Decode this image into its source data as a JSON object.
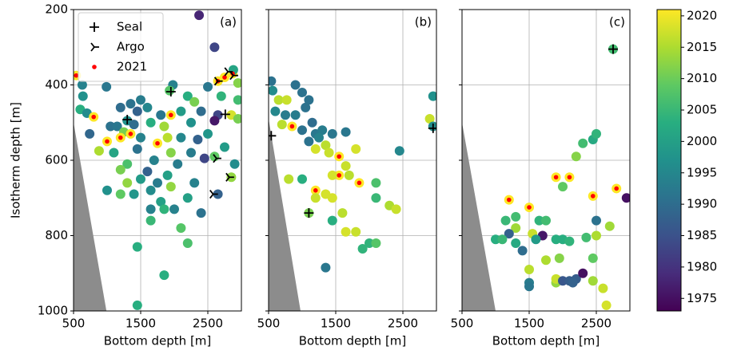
{
  "chart_data": [
    {
      "type": "scatter",
      "label": "(a)",
      "xlabel": "Bottom depth [m]",
      "ylabel": "Isotherm depth [m]",
      "xlim": [
        500,
        3000
      ],
      "ylim": [
        200,
        1000
      ],
      "y_inverted": true,
      "xticks": [
        500,
        1500,
        2500
      ],
      "yticks": [
        200,
        400,
        600,
        800,
        1000
      ],
      "ytick_labels": true,
      "grid": true,
      "colormap": "viridis",
      "highlight_year": 2021,
      "highlight_color": "red",
      "shade_color": "#8c8c8c",
      "shade": {
        "x": [
          500,
          500,
          990
        ],
        "y": [
          500,
          1000,
          1000
        ]
      },
      "legend": [
        {
          "label": "Seal",
          "marker": "plus"
        },
        {
          "label": "Argo",
          "marker": "tri"
        },
        {
          "label": "2021",
          "marker": "dot"
        }
      ],
      "legend_loc": "upper left",
      "points": {
        "x": [
          2370,
          2600,
          540,
          2870,
          2750,
          2950,
          2650,
          2880,
          630,
          990,
          1980,
          1930,
          2500,
          2200,
          640,
          1500,
          1350,
          2300,
          2700,
          2950,
          600,
          700,
          800,
          1200,
          1450,
          1600,
          1800,
          1950,
          2100,
          2400,
          2650,
          2850,
          2950,
          1300,
          1050,
          1150,
          1400,
          1650,
          1850,
          2250,
          2600,
          740,
          1250,
          1350,
          1200,
          1000,
          1500,
          1750,
          1900,
          2100,
          2350,
          2500,
          2750,
          880,
          1100,
          1450,
          1950,
          2250,
          2450,
          2600,
          1300,
          1700,
          2050,
          2900,
          1200,
          1600,
          1900,
          2850,
          1300,
          1500,
          1750,
          1950,
          2300,
          1000,
          1400,
          1650,
          2650,
          1200,
          1800,
          2200,
          2000,
          1650,
          1850,
          2400,
          1650,
          2100,
          2200,
          1450,
          1850,
          1450
        ],
        "y": [
          215,
          300,
          375,
          370,
          380,
          395,
          390,
          360,
          400,
          405,
          400,
          415,
          405,
          430,
          430,
          440,
          450,
          445,
          430,
          440,
          465,
          475,
          485,
          460,
          470,
          460,
          480,
          480,
          470,
          470,
          480,
          480,
          490,
          495,
          510,
          510,
          505,
          500,
          510,
          500,
          495,
          530,
          525,
          530,
          540,
          550,
          540,
          555,
          540,
          540,
          545,
          530,
          565,
          575,
          580,
          570,
          580,
          580,
          595,
          590,
          610,
          600,
          610,
          610,
          625,
          630,
          640,
          645,
          660,
          650,
          660,
          670,
          660,
          680,
          690,
          680,
          690,
          690,
          710,
          700,
          730,
          730,
          730,
          740,
          760,
          780,
          820,
          830,
          905,
          985
        ],
        "year": [
          1978,
          1983,
          2021,
          2021,
          2021,
          2012,
          2021,
          2001,
          1994,
          1992,
          1994,
          2008,
          1992,
          2003,
          1997,
          1993,
          1991,
          2011,
          2004,
          2006,
          2003,
          1996,
          2021,
          1990,
          1988,
          1995,
          1992,
          2021,
          1999,
          1990,
          1983,
          2018,
          2011,
          1997,
          1991,
          1992,
          1990,
          2003,
          2014,
          1997,
          1976,
          1989,
          2011,
          2021,
          2021,
          2021,
          1994,
          2021,
          2016,
          1995,
          1988,
          1998,
          1999,
          2015,
          2001,
          1991,
          2012,
          1993,
          1983,
          2009,
          2007,
          1994,
          1993,
          1996,
          2011,
          1988,
          2000,
          2013,
          2013,
          1999,
          1993,
          2013,
          1994,
          1997,
          1998,
          1996,
          1988,
          2009,
          2000,
          2000,
          1994,
          1994,
          2004,
          1991,
          2005,
          2008,
          2007,
          2003,
          2003,
          2003
        ]
      },
      "seal": {
        "x": [
          1300,
          1950,
          2760
        ],
        "y": [
          492,
          418,
          478
        ]
      },
      "argo": {
        "x": [
          2880,
          2800,
          2650,
          2630,
          2580,
          2820
        ],
        "y": [
          375,
          365,
          390,
          595,
          690,
          645
        ]
      }
    },
    {
      "type": "scatter",
      "label": "(b)",
      "xlabel": "Bottom depth [m]",
      "xlim": [
        500,
        3000
      ],
      "ylim": [
        200,
        1000
      ],
      "y_inverted": true,
      "xticks": [
        500,
        1500,
        2500
      ],
      "yticks": [
        200,
        400,
        600,
        800,
        1000
      ],
      "ytick_labels": false,
      "grid": true,
      "colormap": "viridis",
      "highlight_year": 2021,
      "highlight_color": "red",
      "shade_color": "#8c8c8c",
      "shade": {
        "x": [
          500,
          500,
          976
        ],
        "y": [
          490,
          1000,
          1000
        ]
      },
      "points": {
        "x": [
          540,
          560,
          650,
          770,
          900,
          1000,
          1100,
          1050,
          600,
          750,
          900,
          1150,
          700,
          850,
          1000,
          1200,
          1300,
          1450,
          1650,
          1100,
          1250,
          1350,
          1200,
          1400,
          1550,
          1650,
          1800,
          2450,
          2950,
          2900,
          2950,
          1550,
          1450,
          1700,
          1200,
          1350,
          1450,
          1850,
          2100,
          1000,
          800,
          1200,
          2100,
          2300,
          2400,
          1600,
          1450,
          1100,
          1650,
          1800,
          2000,
          2100,
          1900,
          1350
        ],
        "y": [
          390,
          415,
          440,
          440,
          400,
          420,
          440,
          460,
          470,
          480,
          480,
          500,
          505,
          510,
          520,
          530,
          520,
          530,
          525,
          550,
          540,
          560,
          570,
          580,
          590,
          615,
          570,
          575,
          430,
          490,
          510,
          640,
          640,
          640,
          680,
          690,
          700,
          660,
          660,
          650,
          650,
          700,
          700,
          720,
          730,
          740,
          760,
          740,
          790,
          790,
          820,
          820,
          835,
          885
        ],
        "year": [
          1991,
          1996,
          2016,
          2017,
          1991,
          1991,
          1991,
          1991,
          1995,
          1993,
          1993,
          1990,
          2016,
          2021,
          1991,
          1992,
          1993,
          1992,
          1992,
          1991,
          1994,
          2016,
          2018,
          2017,
          2021,
          2017,
          2018,
          1995,
          1997,
          2017,
          1996,
          2021,
          2018,
          2016,
          2021,
          2018,
          2018,
          2021,
          2007,
          2003,
          2016,
          2017,
          2005,
          2015,
          2017,
          2016,
          2003,
          2011,
          2018,
          2017,
          2004,
          2008,
          2004,
          1992
        ]
      },
      "seal": {
        "x": [
          1100,
          2950,
          540
        ],
        "y": [
          740,
          515,
          535
        ]
      },
      "argo": {
        "x": [],
        "y": []
      }
    },
    {
      "type": "scatter",
      "label": "(c)",
      "xlabel": "Bottom depth [m]",
      "xlim": [
        500,
        3000
      ],
      "ylim": [
        200,
        1000
      ],
      "y_inverted": true,
      "xticks": [
        500,
        1500,
        2500
      ],
      "yticks": [
        200,
        400,
        600,
        800,
        1000
      ],
      "ytick_labels": false,
      "grid": true,
      "colormap": "viridis",
      "highlight_year": 2021,
      "highlight_color": "red",
      "shade_color": "#8c8c8c",
      "shade": {
        "x": [
          500,
          500,
          1000
        ],
        "y": [
          500,
          1000,
          1000
        ]
      },
      "points": {
        "x": [
          2750,
          2300,
          2450,
          2500,
          2200,
          1900,
          2100,
          2000,
          2450,
          2800,
          2950,
          1200,
          1500,
          1150,
          1300,
          1650,
          1750,
          1300,
          2500,
          2700,
          1200,
          1550,
          1700,
          1600,
          1900,
          2000,
          2100,
          2350,
          2500,
          1000,
          1100,
          1300,
          1400,
          1750,
          1950,
          2450,
          1500,
          1900,
          1900,
          2000,
          2100,
          2200,
          2300,
          2150,
          1500,
          1500,
          2450,
          2600,
          2650
        ],
        "y": [
          305,
          555,
          545,
          530,
          590,
          645,
          645,
          670,
          695,
          675,
          700,
          705,
          725,
          760,
          750,
          760,
          760,
          780,
          760,
          775,
          795,
          795,
          800,
          810,
          810,
          810,
          815,
          805,
          800,
          810,
          810,
          820,
          840,
          865,
          860,
          860,
          890,
          925,
          915,
          920,
          920,
          915,
          900,
          925,
          925,
          935,
          920,
          940,
          985
        ],
        "year": [
          2006,
          2006,
          2002,
          2004,
          2012,
          2021,
          2021,
          2009,
          2021,
          2021,
          1975,
          2021,
          2021,
          2005,
          2006,
          2004,
          2006,
          2014,
          1991,
          2014,
          1988,
          2017,
          1976,
          1999,
          2003,
          2003,
          2004,
          2006,
          2015,
          2003,
          2005,
          2002,
          1990,
          2015,
          2012,
          2009,
          2016,
          2013,
          2017,
          1986,
          1987,
          1987,
          1975,
          1988,
          1993,
          1992,
          2014,
          2017,
          2018
        ]
      },
      "seal": {
        "x": [
          2750
        ],
        "y": [
          305
        ]
      },
      "argo": {
        "x": [],
        "y": []
      }
    },
    {
      "type": "colorbar",
      "colormap": "viridis",
      "clim": [
        1973,
        2021
      ],
      "ticks": [
        1975,
        1980,
        1985,
        1990,
        1995,
        2000,
        2005,
        2010,
        2015,
        2020
      ]
    }
  ]
}
